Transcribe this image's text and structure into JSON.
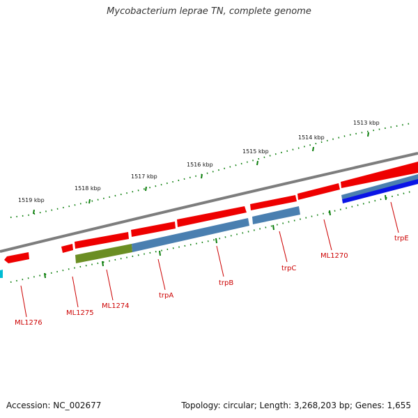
{
  "title": "Mycobacterium leprae TN, complete genome",
  "footer": {
    "accession": "Accession: NC_002677",
    "summary": "Topology: circular; Length: 3,268,203 bp; Genes: 1,655"
  },
  "scale_labels": [
    "1513 kbp",
    "1514 kbp",
    "1515 kbp",
    "1516 kbp",
    "1517 kbp",
    "1518 kbp",
    "1519 kbp"
  ],
  "gene_labels": [
    "ML1276",
    "ML1275",
    "ML1274",
    "trpA",
    "trpB",
    "trpC",
    "ML1270",
    "trpE"
  ],
  "colors": {
    "backbone": "#7d7d7d",
    "gene_red": "#ee0000",
    "gene_blue": "#4a7fb0",
    "gene_darkblue": "#0a14e6",
    "gene_olive": "#6b8e23",
    "gene_cyan": "#00bcd4",
    "tick_green": "#0a7d0a",
    "label_red": "#cc0000"
  }
}
